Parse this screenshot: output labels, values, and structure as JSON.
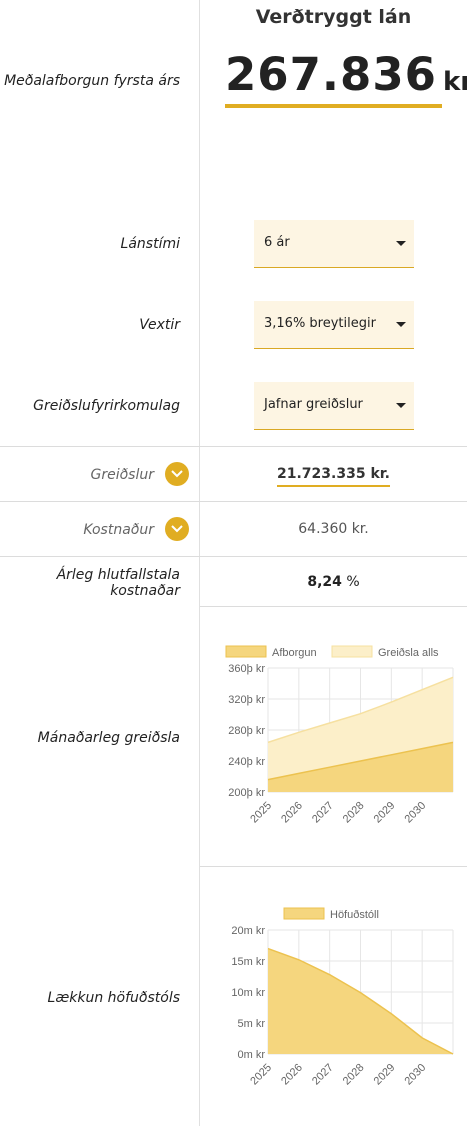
{
  "header": {
    "title": "Verðtryggt lán"
  },
  "summary": {
    "label": "Meðalafborgun fyrsta árs",
    "amount": "267.836",
    "unit": "kr."
  },
  "fields": {
    "term": {
      "label": "Lánstími",
      "value": "6 ár"
    },
    "rate": {
      "label": "Vextir",
      "value": "3,16% breytilegir"
    },
    "payment_type": {
      "label": "Greiðslufyrirkomulag",
      "value": "Jafnar greiðslur"
    }
  },
  "payments": {
    "label": "Greiðslur",
    "value": "21.723.335 kr."
  },
  "cost": {
    "label": "Kostnaður",
    "value": "64.360 kr."
  },
  "apr": {
    "label_line1": "Árleg hlutfallstala",
    "label_line2": "kostnaðar",
    "value": "8,24",
    "unit": "%"
  },
  "monthly_chart": {
    "label": "Mánaðarleg greiðsla"
  },
  "principal_chart": {
    "label": "Lækkun höfuðstóls"
  },
  "colors": {
    "accent": "#e0ad22",
    "fill_primary": "#f5d67e",
    "fill_secondary": "#fcf0cc"
  },
  "icons": {
    "toggle": "chevron-down-icon",
    "select": "caret-down-icon"
  },
  "chart_data": [
    {
      "type": "area",
      "x": [
        "2025",
        "2026",
        "2027",
        "2028",
        "2029",
        "2030"
      ],
      "series": [
        {
          "name": "Afborgun",
          "values": [
            216,
            224,
            232,
            240,
            248,
            256
          ]
        },
        {
          "name": "Greiðsla alls",
          "values": [
            264,
            277,
            289,
            301,
            316,
            332
          ]
        }
      ],
      "yticks": [
        "360þ kr",
        "320þ kr",
        "280þ kr",
        "240þ kr",
        "200þ kr"
      ],
      "ylim": [
        200,
        360
      ],
      "y_scale": "linear",
      "grid": true,
      "legend": "top"
    },
    {
      "type": "area",
      "x": [
        "2025",
        "2026",
        "2027",
        "2028",
        "2029",
        "2030"
      ],
      "series": [
        {
          "name": "Höfuðstóll",
          "values": [
            17.0,
            15.2,
            12.8,
            9.9,
            6.5,
            2.6
          ]
        }
      ],
      "end_value": 0,
      "yticks": [
        "20m kr",
        "15m kr",
        "10m kr",
        "5m kr",
        "0m kr"
      ],
      "ylim": [
        0,
        20
      ],
      "grid": true,
      "legend": "top"
    }
  ]
}
